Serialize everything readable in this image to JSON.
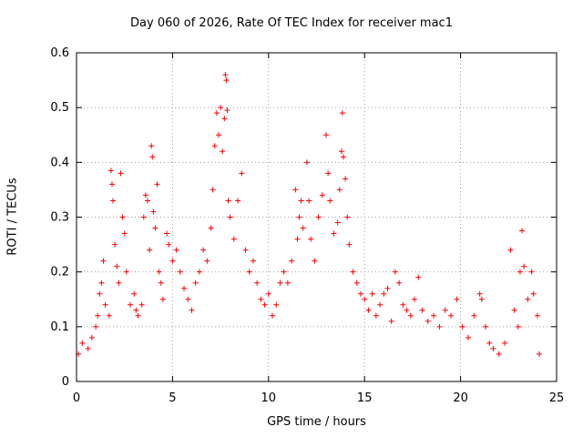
{
  "chart_data": {
    "type": "scatter",
    "title": "Day 060 of 2026, Rate Of TEC Index for receiver mac1",
    "xlabel": "GPS time / hours",
    "ylabel": "ROTI / TECUs",
    "xlim": [
      0,
      25
    ],
    "ylim": [
      0,
      0.6
    ],
    "xticks": [
      "0",
      "5",
      "10",
      "15",
      "20",
      "25"
    ],
    "yticks": [
      "0",
      "0.1",
      "0.2",
      "0.3",
      "0.4",
      "0.5",
      "0.6"
    ],
    "grid": true,
    "marker": "plus",
    "color": "#ff0000",
    "series": [
      {
        "values": [
          [
            0.1,
            0.05
          ],
          [
            0.3,
            0.07
          ],
          [
            0.6,
            0.06
          ],
          [
            0.8,
            0.08
          ],
          [
            1.0,
            0.1
          ],
          [
            1.1,
            0.12
          ],
          [
            1.2,
            0.16
          ],
          [
            1.3,
            0.18
          ],
          [
            1.4,
            0.22
          ],
          [
            1.5,
            0.14
          ],
          [
            1.7,
            0.12
          ],
          [
            1.8,
            0.385
          ],
          [
            1.85,
            0.36
          ],
          [
            1.9,
            0.33
          ],
          [
            2.0,
            0.25
          ],
          [
            2.1,
            0.21
          ],
          [
            2.2,
            0.18
          ],
          [
            2.3,
            0.38
          ],
          [
            2.4,
            0.3
          ],
          [
            2.5,
            0.27
          ],
          [
            2.6,
            0.2
          ],
          [
            2.8,
            0.14
          ],
          [
            3.0,
            0.16
          ],
          [
            3.1,
            0.13
          ],
          [
            3.2,
            0.12
          ],
          [
            3.4,
            0.14
          ],
          [
            3.5,
            0.3
          ],
          [
            3.6,
            0.34
          ],
          [
            3.7,
            0.33
          ],
          [
            3.8,
            0.24
          ],
          [
            3.9,
            0.43
          ],
          [
            3.95,
            0.41
          ],
          [
            4.0,
            0.31
          ],
          [
            4.1,
            0.28
          ],
          [
            4.2,
            0.36
          ],
          [
            4.3,
            0.2
          ],
          [
            4.4,
            0.18
          ],
          [
            4.5,
            0.15
          ],
          [
            4.7,
            0.27
          ],
          [
            4.8,
            0.25
          ],
          [
            5.0,
            0.22
          ],
          [
            5.2,
            0.24
          ],
          [
            5.4,
            0.2
          ],
          [
            5.6,
            0.17
          ],
          [
            5.8,
            0.15
          ],
          [
            6.0,
            0.13
          ],
          [
            6.2,
            0.18
          ],
          [
            6.4,
            0.2
          ],
          [
            6.6,
            0.24
          ],
          [
            6.8,
            0.22
          ],
          [
            7.0,
            0.28
          ],
          [
            7.1,
            0.35
          ],
          [
            7.2,
            0.43
          ],
          [
            7.3,
            0.49
          ],
          [
            7.4,
            0.45
          ],
          [
            7.5,
            0.5
          ],
          [
            7.6,
            0.42
          ],
          [
            7.7,
            0.48
          ],
          [
            7.75,
            0.56
          ],
          [
            7.8,
            0.55
          ],
          [
            7.85,
            0.495
          ],
          [
            7.9,
            0.33
          ],
          [
            8.0,
            0.3
          ],
          [
            8.2,
            0.26
          ],
          [
            8.4,
            0.33
          ],
          [
            8.6,
            0.38
          ],
          [
            8.8,
            0.24
          ],
          [
            9.0,
            0.2
          ],
          [
            9.2,
            0.22
          ],
          [
            9.4,
            0.18
          ],
          [
            9.6,
            0.15
          ],
          [
            9.8,
            0.14
          ],
          [
            10.0,
            0.16
          ],
          [
            10.2,
            0.12
          ],
          [
            10.4,
            0.14
          ],
          [
            10.6,
            0.18
          ],
          [
            10.8,
            0.2
          ],
          [
            11.0,
            0.18
          ],
          [
            11.2,
            0.22
          ],
          [
            11.4,
            0.35
          ],
          [
            11.5,
            0.26
          ],
          [
            11.6,
            0.3
          ],
          [
            11.7,
            0.33
          ],
          [
            11.8,
            0.28
          ],
          [
            12.0,
            0.4
          ],
          [
            12.1,
            0.33
          ],
          [
            12.2,
            0.26
          ],
          [
            12.4,
            0.22
          ],
          [
            12.6,
            0.3
          ],
          [
            12.8,
            0.34
          ],
          [
            13.0,
            0.45
          ],
          [
            13.1,
            0.38
          ],
          [
            13.2,
            0.33
          ],
          [
            13.4,
            0.27
          ],
          [
            13.6,
            0.29
          ],
          [
            13.7,
            0.35
          ],
          [
            13.8,
            0.42
          ],
          [
            13.85,
            0.49
          ],
          [
            13.9,
            0.41
          ],
          [
            14.0,
            0.37
          ],
          [
            14.1,
            0.3
          ],
          [
            14.2,
            0.25
          ],
          [
            14.4,
            0.2
          ],
          [
            14.6,
            0.18
          ],
          [
            14.8,
            0.16
          ],
          [
            15.0,
            0.15
          ],
          [
            15.2,
            0.13
          ],
          [
            15.4,
            0.16
          ],
          [
            15.6,
            0.12
          ],
          [
            15.8,
            0.14
          ],
          [
            16.0,
            0.16
          ],
          [
            16.2,
            0.17
          ],
          [
            16.4,
            0.11
          ],
          [
            16.6,
            0.2
          ],
          [
            16.8,
            0.18
          ],
          [
            17.0,
            0.14
          ],
          [
            17.2,
            0.13
          ],
          [
            17.4,
            0.12
          ],
          [
            17.6,
            0.15
          ],
          [
            17.8,
            0.19
          ],
          [
            18.0,
            0.13
          ],
          [
            18.3,
            0.11
          ],
          [
            18.6,
            0.12
          ],
          [
            18.9,
            0.1
          ],
          [
            19.2,
            0.13
          ],
          [
            19.5,
            0.12
          ],
          [
            19.8,
            0.15
          ],
          [
            20.1,
            0.1
          ],
          [
            20.4,
            0.08
          ],
          [
            20.7,
            0.12
          ],
          [
            21.0,
            0.16
          ],
          [
            21.1,
            0.15
          ],
          [
            21.3,
            0.1
          ],
          [
            21.5,
            0.07
          ],
          [
            21.7,
            0.06
          ],
          [
            22.0,
            0.05
          ],
          [
            22.3,
            0.07
          ],
          [
            22.6,
            0.24
          ],
          [
            22.8,
            0.13
          ],
          [
            23.0,
            0.1
          ],
          [
            23.1,
            0.2
          ],
          [
            23.2,
            0.275
          ],
          [
            23.3,
            0.21
          ],
          [
            23.5,
            0.15
          ],
          [
            23.7,
            0.2
          ],
          [
            23.8,
            0.16
          ],
          [
            24.0,
            0.12
          ],
          [
            24.1,
            0.05
          ]
        ]
      }
    ]
  }
}
